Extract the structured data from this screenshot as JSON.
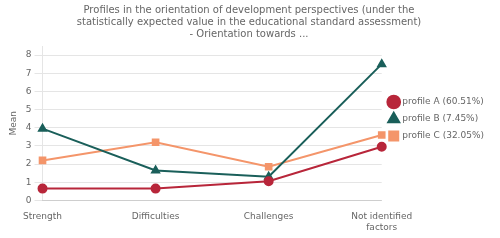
{
  "chart_data": {
    "type": "line",
    "title": "Profiles in the orientation of development perspectives (under the\nstatistically expected value in the educational standard assessment)\n- Orientation towards ...",
    "y_label": "Mean",
    "categories": [
      "Strength",
      "Difficulties",
      "Challenges",
      "Not identified\nfactors"
    ],
    "series": [
      {
        "name": "profile A (60.51%)",
        "color": "#b8263a",
        "marker": "circle",
        "values": [
          0.65,
          0.65,
          1.05,
          2.95
        ]
      },
      {
        "name": "profile B (7.45%)",
        "color": "#1a5f5a",
        "marker": "triangle",
        "values": [
          3.95,
          1.65,
          1.3,
          7.5
        ]
      },
      {
        "name": "profile C (32.05%)",
        "color": "#f4956a",
        "marker": "square",
        "values": [
          2.2,
          3.2,
          1.85,
          3.6
        ]
      }
    ],
    "ylim": [
      0,
      8.5
    ],
    "yticks": [
      0,
      1,
      2,
      3,
      4,
      5,
      6,
      7,
      8
    ],
    "grid": true,
    "legend": "right"
  }
}
